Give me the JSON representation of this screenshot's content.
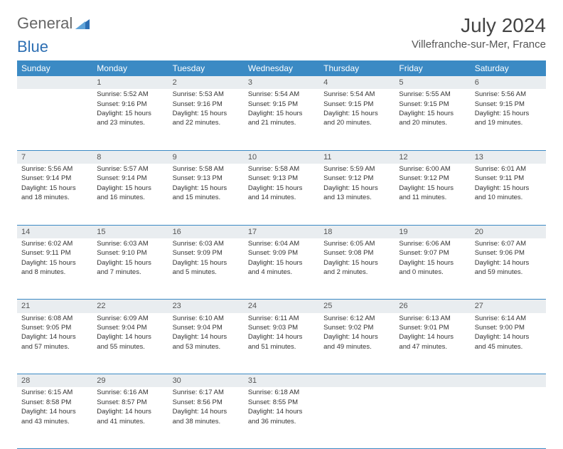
{
  "logo": {
    "text1": "General",
    "text2": "Blue"
  },
  "title": "July 2024",
  "location": "Villefranche-sur-Mer, France",
  "colors": {
    "header_bg": "#3b8ac4",
    "header_text": "#ffffff",
    "daynum_bg": "#e9edf0",
    "border": "#3b8ac4",
    "logo_blue": "#2d6fb3"
  },
  "weekdays": [
    "Sunday",
    "Monday",
    "Tuesday",
    "Wednesday",
    "Thursday",
    "Friday",
    "Saturday"
  ],
  "weeks": [
    [
      null,
      {
        "n": "1",
        "sr": "5:52 AM",
        "ss": "9:16 PM",
        "dl": "15 hours and 23 minutes."
      },
      {
        "n": "2",
        "sr": "5:53 AM",
        "ss": "9:16 PM",
        "dl": "15 hours and 22 minutes."
      },
      {
        "n": "3",
        "sr": "5:54 AM",
        "ss": "9:15 PM",
        "dl": "15 hours and 21 minutes."
      },
      {
        "n": "4",
        "sr": "5:54 AM",
        "ss": "9:15 PM",
        "dl": "15 hours and 20 minutes."
      },
      {
        "n": "5",
        "sr": "5:55 AM",
        "ss": "9:15 PM",
        "dl": "15 hours and 20 minutes."
      },
      {
        "n": "6",
        "sr": "5:56 AM",
        "ss": "9:15 PM",
        "dl": "15 hours and 19 minutes."
      }
    ],
    [
      {
        "n": "7",
        "sr": "5:56 AM",
        "ss": "9:14 PM",
        "dl": "15 hours and 18 minutes."
      },
      {
        "n": "8",
        "sr": "5:57 AM",
        "ss": "9:14 PM",
        "dl": "15 hours and 16 minutes."
      },
      {
        "n": "9",
        "sr": "5:58 AM",
        "ss": "9:13 PM",
        "dl": "15 hours and 15 minutes."
      },
      {
        "n": "10",
        "sr": "5:58 AM",
        "ss": "9:13 PM",
        "dl": "15 hours and 14 minutes."
      },
      {
        "n": "11",
        "sr": "5:59 AM",
        "ss": "9:12 PM",
        "dl": "15 hours and 13 minutes."
      },
      {
        "n": "12",
        "sr": "6:00 AM",
        "ss": "9:12 PM",
        "dl": "15 hours and 11 minutes."
      },
      {
        "n": "13",
        "sr": "6:01 AM",
        "ss": "9:11 PM",
        "dl": "15 hours and 10 minutes."
      }
    ],
    [
      {
        "n": "14",
        "sr": "6:02 AM",
        "ss": "9:11 PM",
        "dl": "15 hours and 8 minutes."
      },
      {
        "n": "15",
        "sr": "6:03 AM",
        "ss": "9:10 PM",
        "dl": "15 hours and 7 minutes."
      },
      {
        "n": "16",
        "sr": "6:03 AM",
        "ss": "9:09 PM",
        "dl": "15 hours and 5 minutes."
      },
      {
        "n": "17",
        "sr": "6:04 AM",
        "ss": "9:09 PM",
        "dl": "15 hours and 4 minutes."
      },
      {
        "n": "18",
        "sr": "6:05 AM",
        "ss": "9:08 PM",
        "dl": "15 hours and 2 minutes."
      },
      {
        "n": "19",
        "sr": "6:06 AM",
        "ss": "9:07 PM",
        "dl": "15 hours and 0 minutes."
      },
      {
        "n": "20",
        "sr": "6:07 AM",
        "ss": "9:06 PM",
        "dl": "14 hours and 59 minutes."
      }
    ],
    [
      {
        "n": "21",
        "sr": "6:08 AM",
        "ss": "9:05 PM",
        "dl": "14 hours and 57 minutes."
      },
      {
        "n": "22",
        "sr": "6:09 AM",
        "ss": "9:04 PM",
        "dl": "14 hours and 55 minutes."
      },
      {
        "n": "23",
        "sr": "6:10 AM",
        "ss": "9:04 PM",
        "dl": "14 hours and 53 minutes."
      },
      {
        "n": "24",
        "sr": "6:11 AM",
        "ss": "9:03 PM",
        "dl": "14 hours and 51 minutes."
      },
      {
        "n": "25",
        "sr": "6:12 AM",
        "ss": "9:02 PM",
        "dl": "14 hours and 49 minutes."
      },
      {
        "n": "26",
        "sr": "6:13 AM",
        "ss": "9:01 PM",
        "dl": "14 hours and 47 minutes."
      },
      {
        "n": "27",
        "sr": "6:14 AM",
        "ss": "9:00 PM",
        "dl": "14 hours and 45 minutes."
      }
    ],
    [
      {
        "n": "28",
        "sr": "6:15 AM",
        "ss": "8:58 PM",
        "dl": "14 hours and 43 minutes."
      },
      {
        "n": "29",
        "sr": "6:16 AM",
        "ss": "8:57 PM",
        "dl": "14 hours and 41 minutes."
      },
      {
        "n": "30",
        "sr": "6:17 AM",
        "ss": "8:56 PM",
        "dl": "14 hours and 38 minutes."
      },
      {
        "n": "31",
        "sr": "6:18 AM",
        "ss": "8:55 PM",
        "dl": "14 hours and 36 minutes."
      },
      null,
      null,
      null
    ]
  ],
  "labels": {
    "sunrise": "Sunrise:",
    "sunset": "Sunset:",
    "daylight": "Daylight:"
  }
}
